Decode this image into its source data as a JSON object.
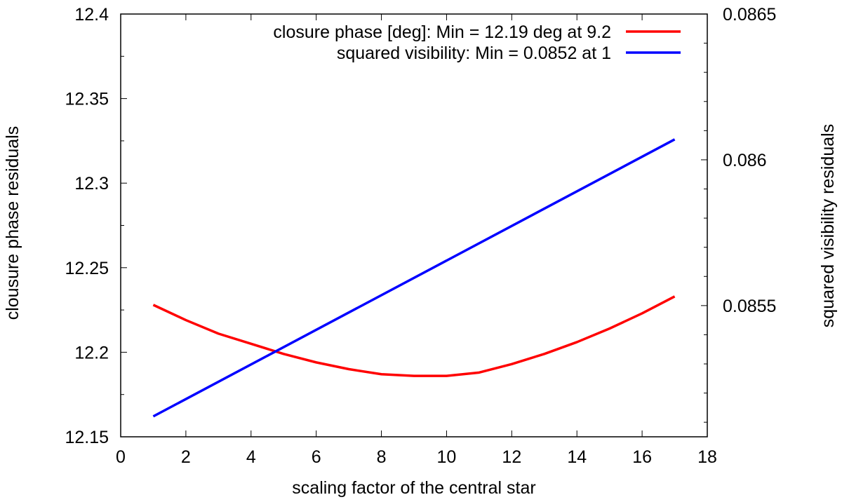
{
  "chart_data": {
    "type": "line",
    "title": "",
    "xlabel": "scaling factor of the central star",
    "ylabel": "clousure phase residuals",
    "y2label": "squared visibility residuals",
    "xlim": [
      0,
      18
    ],
    "ylim": [
      12.15,
      12.4
    ],
    "y2lim": [
      0.08505,
      0.0865
    ],
    "xticks": [
      "0",
      "2",
      "4",
      "6",
      "8",
      "10",
      "12",
      "14",
      "16",
      "18"
    ],
    "yticks": [
      "12.15",
      "12.2",
      "12.25",
      "12.3",
      "12.35",
      "12.4"
    ],
    "y2ticks": [
      "0.0855",
      "0.086",
      "0.0865"
    ],
    "grid": false,
    "legend_position": "top-right",
    "series": [
      {
        "name": "closure phase [deg]: Min = 12.19 deg at 9.2",
        "axis": "left",
        "color": "#ff0000",
        "x": [
          1,
          2,
          3,
          4,
          5,
          6,
          7,
          8,
          9,
          10,
          11,
          12,
          13,
          14,
          15,
          16,
          17
        ],
        "values": [
          12.228,
          12.219,
          12.211,
          12.205,
          12.199,
          12.194,
          12.19,
          12.187,
          12.186,
          12.186,
          12.188,
          12.193,
          12.199,
          12.206,
          12.214,
          12.223,
          12.233
        ]
      },
      {
        "name": "squared visibility: Min = 0.0852 at 1",
        "axis": "right",
        "color": "#0000ff",
        "x": [
          1,
          17
        ],
        "values": [
          0.08512,
          0.08607
        ]
      }
    ]
  }
}
